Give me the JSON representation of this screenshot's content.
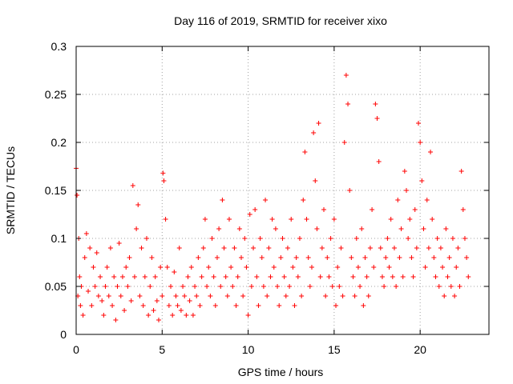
{
  "chart_data": {
    "type": "scatter",
    "title": "Day 116 of 2019, SRMTID for receiver xixo",
    "xlabel": "GPS time / hours",
    "ylabel": "SRMTID / TECUs",
    "xlim": [
      0,
      24
    ],
    "ylim": [
      0,
      0.3
    ],
    "xticks": [
      0,
      5,
      10,
      15,
      20
    ],
    "xtick_labels": [
      "0",
      "5",
      "10",
      "15",
      "20"
    ],
    "yticks": [
      0,
      0.05,
      0.1,
      0.15,
      0.2,
      0.25,
      0.3
    ],
    "ytick_labels": [
      "0",
      "0.05",
      "0.1",
      "0.15",
      "0.2",
      "0.25",
      "0.3"
    ],
    "grid": true,
    "marker": "+",
    "color": "#ff0000",
    "series": [
      {
        "name": "SRMTID",
        "note": "dense point cloud; representative sample of the plotted values",
        "x": [
          0.0,
          0.05,
          0.1,
          0.15,
          0.2,
          0.25,
          0.3,
          0.4,
          0.5,
          0.6,
          0.7,
          0.8,
          0.9,
          1.0,
          1.1,
          1.2,
          1.3,
          1.4,
          1.5,
          1.6,
          1.7,
          1.8,
          1.9,
          2.0,
          2.1,
          2.2,
          2.3,
          2.4,
          2.5,
          2.6,
          2.7,
          2.8,
          2.9,
          3.0,
          3.1,
          3.2,
          3.3,
          3.4,
          3.5,
          3.6,
          3.7,
          3.8,
          3.9,
          4.0,
          4.1,
          4.2,
          4.3,
          4.4,
          4.5,
          4.6,
          4.7,
          4.8,
          4.9,
          5.0,
          5.05,
          5.1,
          5.2,
          5.3,
          5.4,
          5.5,
          5.6,
          5.7,
          5.8,
          5.9,
          6.0,
          6.1,
          6.2,
          6.3,
          6.4,
          6.5,
          6.6,
          6.7,
          6.8,
          6.9,
          7.0,
          7.1,
          7.2,
          7.3,
          7.4,
          7.5,
          7.6,
          7.7,
          7.8,
          7.9,
          8.0,
          8.1,
          8.2,
          8.3,
          8.4,
          8.5,
          8.6,
          8.7,
          8.8,
          8.9,
          9.0,
          9.1,
          9.2,
          9.3,
          9.4,
          9.5,
          9.6,
          9.7,
          9.8,
          9.9,
          10.0,
          10.1,
          10.2,
          10.3,
          10.4,
          10.5,
          10.6,
          10.7,
          10.8,
          10.9,
          11.0,
          11.1,
          11.2,
          11.3,
          11.4,
          11.5,
          11.6,
          11.7,
          11.8,
          11.9,
          12.0,
          12.1,
          12.2,
          12.3,
          12.4,
          12.5,
          12.6,
          12.7,
          12.8,
          12.9,
          13.0,
          13.1,
          13.2,
          13.3,
          13.4,
          13.5,
          13.6,
          13.7,
          13.8,
          13.9,
          14.0,
          14.1,
          14.2,
          14.3,
          14.4,
          14.5,
          14.6,
          14.7,
          14.8,
          14.9,
          15.0,
          15.1,
          15.2,
          15.3,
          15.4,
          15.5,
          15.6,
          15.7,
          15.8,
          15.9,
          16.0,
          16.1,
          16.2,
          16.3,
          16.4,
          16.5,
          16.6,
          16.7,
          16.8,
          16.9,
          17.0,
          17.1,
          17.2,
          17.3,
          17.4,
          17.5,
          17.6,
          17.7,
          17.8,
          17.9,
          18.0,
          18.1,
          18.2,
          18.3,
          18.4,
          18.5,
          18.6,
          18.7,
          18.8,
          18.9,
          19.0,
          19.1,
          19.2,
          19.3,
          19.4,
          19.5,
          19.6,
          19.7,
          19.8,
          19.9,
          20.0,
          20.1,
          20.2,
          20.3,
          20.4,
          20.5,
          20.6,
          20.7,
          20.8,
          20.9,
          21.0,
          21.1,
          21.2,
          21.3,
          21.4,
          21.5,
          21.6,
          21.7,
          21.8,
          21.9,
          22.0,
          22.1,
          22.2,
          22.3,
          22.4,
          22.5,
          22.6,
          22.7,
          22.8
        ],
        "y": [
          0.173,
          0.145,
          0.04,
          0.1,
          0.06,
          0.03,
          0.05,
          0.02,
          0.08,
          0.105,
          0.045,
          0.09,
          0.03,
          0.07,
          0.05,
          0.085,
          0.04,
          0.06,
          0.035,
          0.02,
          0.05,
          0.07,
          0.04,
          0.09,
          0.03,
          0.06,
          0.015,
          0.05,
          0.095,
          0.04,
          0.06,
          0.025,
          0.07,
          0.05,
          0.08,
          0.035,
          0.155,
          0.06,
          0.11,
          0.135,
          0.04,
          0.09,
          0.03,
          0.06,
          0.1,
          0.02,
          0.05,
          0.08,
          0.025,
          0.06,
          0.035,
          0.015,
          0.07,
          0.04,
          0.168,
          0.16,
          0.12,
          0.07,
          0.03,
          0.05,
          0.02,
          0.065,
          0.04,
          0.03,
          0.09,
          0.025,
          0.05,
          0.04,
          0.02,
          0.06,
          0.035,
          0.07,
          0.02,
          0.05,
          0.04,
          0.08,
          0.03,
          0.06,
          0.09,
          0.12,
          0.05,
          0.07,
          0.04,
          0.1,
          0.06,
          0.03,
          0.08,
          0.11,
          0.05,
          0.14,
          0.09,
          0.06,
          0.04,
          0.12,
          0.07,
          0.05,
          0.09,
          0.03,
          0.06,
          0.11,
          0.08,
          0.04,
          0.1,
          0.07,
          0.02,
          0.125,
          0.05,
          0.09,
          0.13,
          0.06,
          0.03,
          0.1,
          0.08,
          0.05,
          0.14,
          0.04,
          0.09,
          0.06,
          0.12,
          0.07,
          0.11,
          0.05,
          0.03,
          0.08,
          0.1,
          0.06,
          0.04,
          0.09,
          0.05,
          0.12,
          0.07,
          0.03,
          0.08,
          0.06,
          0.1,
          0.04,
          0.14,
          0.19,
          0.12,
          0.08,
          0.05,
          0.07,
          0.21,
          0.16,
          0.11,
          0.22,
          0.06,
          0.09,
          0.13,
          0.04,
          0.08,
          0.06,
          0.1,
          0.05,
          0.12,
          0.03,
          0.07,
          0.05,
          0.09,
          0.04,
          0.2,
          0.27,
          0.24,
          0.15,
          0.08,
          0.06,
          0.04,
          0.1,
          0.07,
          0.05,
          0.11,
          0.03,
          0.08,
          0.06,
          0.04,
          0.09,
          0.13,
          0.07,
          0.24,
          0.225,
          0.18,
          0.09,
          0.06,
          0.05,
          0.08,
          0.1,
          0.07,
          0.12,
          0.06,
          0.09,
          0.05,
          0.14,
          0.08,
          0.11,
          0.06,
          0.17,
          0.15,
          0.1,
          0.12,
          0.08,
          0.06,
          0.13,
          0.09,
          0.22,
          0.2,
          0.16,
          0.11,
          0.07,
          0.14,
          0.09,
          0.19,
          0.12,
          0.08,
          0.06,
          0.1,
          0.05,
          0.09,
          0.07,
          0.04,
          0.11,
          0.06,
          0.08,
          0.05,
          0.1,
          0.04,
          0.07,
          0.09,
          0.05,
          0.17,
          0.13,
          0.1,
          0.08,
          0.06
        ]
      }
    ]
  }
}
